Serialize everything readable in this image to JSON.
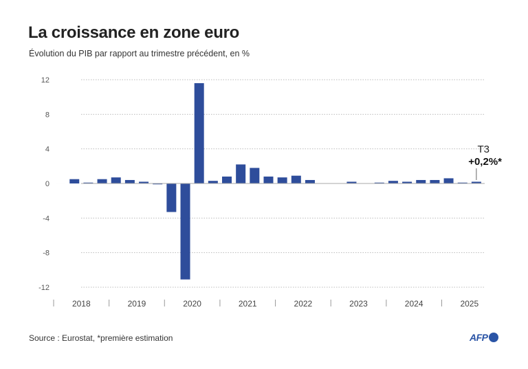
{
  "chart_data": {
    "type": "bar",
    "title": "La croissance en zone euro",
    "subtitle": "Évolution du PIB par rapport au trimestre précédent, en %",
    "source": "Source : Eurostat, *première estimation",
    "xlabel": "",
    "ylabel": "",
    "ylim": [
      -12,
      12
    ],
    "yticks": [
      12,
      8,
      4,
      0,
      -4,
      -8,
      -12
    ],
    "ytick_labels": [
      "12",
      "8",
      "4",
      "0",
      "-4",
      "-8",
      "-12"
    ],
    "year_labels": [
      "2018",
      "2019",
      "2020",
      "2021",
      "2022",
      "2023",
      "2024",
      "2025"
    ],
    "grid": true,
    "color": "#2e4d9b",
    "categories": [
      "2018 T1",
      "2018 T2",
      "2018 T3",
      "2018 T4",
      "2019 T1",
      "2019 T2",
      "2019 T3",
      "2019 T4",
      "2020 T1",
      "2020 T2",
      "2020 T3",
      "2020 T4",
      "2021 T1",
      "2021 T2",
      "2021 T3",
      "2021 T4",
      "2022 T1",
      "2022 T2",
      "2022 T3",
      "2022 T4",
      "2023 T1",
      "2023 T2",
      "2023 T3",
      "2023 T4",
      "2024 T1",
      "2024 T2",
      "2024 T3",
      "2024 T4",
      "2025 T1",
      "2025 T2",
      "2025 T3"
    ],
    "values": [
      0.0,
      0.5,
      0.1,
      0.5,
      0.7,
      0.4,
      0.2,
      -0.1,
      -3.3,
      -11.1,
      11.6,
      0.3,
      0.8,
      2.2,
      1.8,
      0.8,
      0.7,
      0.9,
      0.4,
      0.0,
      0.0,
      0.2,
      0.0,
      0.1,
      0.3,
      0.2,
      0.4,
      0.4,
      0.6,
      0.1,
      0.2
    ],
    "annotation": {
      "label": "T3",
      "value": "+0,2%*"
    }
  },
  "logo": "AFP"
}
